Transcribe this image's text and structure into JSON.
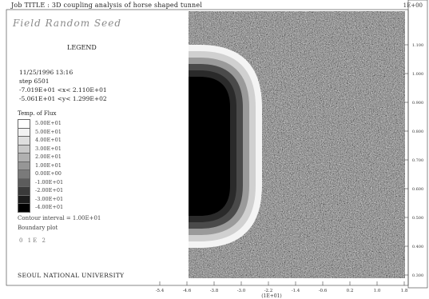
{
  "header": {
    "title": "Job TITLE : 3D coupling analysis of horse shaped tunnel",
    "units_label": "1E+00",
    "y_corner_label": ""
  },
  "panel": {
    "subtitle": "Field Random Seed",
    "legend_heading": "LEGEND",
    "timestamp": "11/25/1996  13:16",
    "step": "step     6501",
    "range_line_1": "-7.019E+01 <x< 2.110E+01",
    "range_line_2": "-5.061E+01 <y< 1.299E+02",
    "contour_heading": "Temp. of Flux",
    "scale_values": [
      "5.00E+01",
      "5.00E+01",
      "4.00E+01",
      "3.00E+01",
      "2.00E+01",
      "1.00E+01",
      "0.00E+00",
      "-1.00E+01",
      "-2.00E+01",
      "-3.00E+01",
      "-4.00E+01"
    ],
    "scale_colors": [
      "#ffffff",
      "#f2f2f2",
      "#dedede",
      "#c8c8c8",
      "#b0b0b0",
      "#969696",
      "#7a7a7a",
      "#5c5c5c",
      "#3a3a3a",
      "#1c1c1c",
      "#000000"
    ],
    "footer_line_1": "Contour interval =  1.00E+01",
    "footer_line_2": "Boundary plot",
    "footer_line_3": "0               1E  2",
    "university": "SEOUL NATIONAL UNIVERSITY"
  },
  "chart_data": {
    "type": "heatmap",
    "title": "Job TITLE : 3D coupling analysis of horse shaped tunnel",
    "subtitle": "Field Random Seed",
    "xlabel": "(1E+01)",
    "ylabel": "",
    "x_ticks": [
      "-5.4",
      "-4.6",
      "-3.8",
      "-3.0",
      "-2.2",
      "-1.4",
      "-0.6",
      "0.2",
      "1.0",
      "1.8"
    ],
    "y_ticks": [
      "1.100",
      "1.000",
      "0.900",
      "0.800",
      "0.700",
      "0.600",
      "0.500",
      "0.400",
      "0.300"
    ],
    "tunnel": {
      "shape": "horseshoe",
      "rings": [
        "#000000",
        "#2a2a2a",
        "#4a4a4a",
        "#9a9a9a",
        "#d0d0d0",
        "#f4f4f4"
      ]
    },
    "field": "random gray noise"
  }
}
